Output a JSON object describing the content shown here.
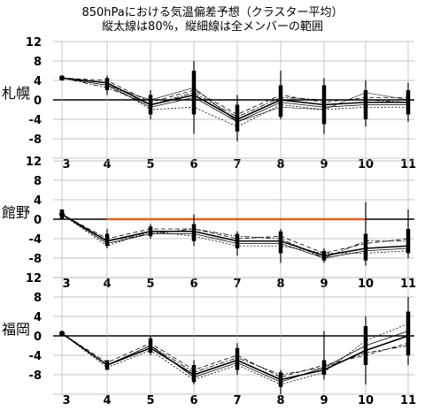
{
  "chart_data": {
    "type": "line",
    "title": "850hPaにおける気温偏差予想（クラスター平均）",
    "subtitle": "縦太線は80%，縦細線は全メンバーの範囲",
    "x": [
      3,
      4,
      5,
      6,
      7,
      8,
      9,
      10,
      11
    ],
    "x_tick_labels": [
      "3",
      "4",
      "5",
      "6",
      "7",
      "8",
      "9",
      "10",
      "11"
    ],
    "y_ticks": [
      12,
      8,
      4,
      0,
      -4,
      -8,
      -12
    ],
    "y_tick_labels": [
      "12",
      "8",
      "4",
      "0",
      "-4",
      "-8"
    ],
    "ylim": [
      -12,
      12
    ],
    "grid": true,
    "panels": [
      {
        "name": "札幌",
        "series": [
          {
            "values": [
              4.5,
              3.5,
              -1.0,
              1.0,
              -4.0,
              0.0,
              -1.0,
              -0.5,
              -0.5
            ]
          },
          {
            "values": [
              4.5,
              3.0,
              -1.5,
              0.5,
              -4.5,
              -0.5,
              -1.5,
              -1.0,
              -1.0
            ]
          },
          {
            "values": [
              4.5,
              4.0,
              -0.5,
              2.0,
              -3.0,
              1.0,
              -0.5,
              0.5,
              0.5
            ]
          },
          {
            "values": [
              4.5,
              3.5,
              -2.0,
              -1.5,
              -5.5,
              -1.0,
              -2.0,
              -1.5,
              -1.5
            ]
          },
          {
            "values": [
              4.5,
              2.5,
              -1.0,
              1.5,
              -3.5,
              0.5,
              0.0,
              0.0,
              -0.5
            ]
          },
          {
            "values": [
              4.5,
              3.0,
              0.0,
              2.5,
              -4.5,
              -1.5,
              -2.0,
              1.5,
              0.0
            ]
          }
        ],
        "bars_80": [
          [
            4,
            5
          ],
          [
            2,
            4.5
          ],
          [
            -3,
            1
          ],
          [
            -3,
            6
          ],
          [
            -6.5,
            -1
          ],
          [
            -3.5,
            3
          ],
          [
            -5,
            3
          ],
          [
            -4,
            2
          ],
          [
            -3,
            2
          ]
        ],
        "ranges": [
          [
            4,
            5
          ],
          [
            1,
            5
          ],
          [
            -4,
            2
          ],
          [
            -7,
            8
          ],
          [
            -8.5,
            1
          ],
          [
            -4,
            6
          ],
          [
            -7,
            4.5
          ],
          [
            -5.5,
            4
          ],
          [
            -4.5,
            3.5
          ]
        ],
        "highlight": null
      },
      {
        "name": "館野",
        "series": [
          {
            "values": [
              1.0,
              -4.5,
              -2.5,
              -2.5,
              -4.5,
              -4.5,
              -7.5,
              -6.0,
              -5.5
            ]
          },
          {
            "values": [
              1.0,
              -5.0,
              -3.0,
              -3.0,
              -5.0,
              -5.0,
              -8.0,
              -6.5,
              -6.0
            ]
          },
          {
            "values": [
              1.0,
              -4.0,
              -2.0,
              -2.0,
              -4.0,
              -3.5,
              -7.0,
              -5.0,
              -4.0
            ]
          },
          {
            "values": [
              1.0,
              -5.5,
              -2.5,
              -3.5,
              -5.5,
              -5.5,
              -7.0,
              -7.0,
              -6.5
            ]
          },
          {
            "values": [
              1.0,
              -4.5,
              -3.0,
              -2.0,
              -3.5,
              -4.0,
              -8.0,
              -4.5,
              -4.5
            ]
          }
        ],
        "bars_80": [
          [
            0,
            2
          ],
          [
            -5.5,
            -3
          ],
          [
            -3.5,
            -1.5
          ],
          [
            -4.5,
            -1
          ],
          [
            -6,
            -3
          ],
          [
            -7,
            -2.5
          ],
          [
            -8.5,
            -6.5
          ],
          [
            -8.5,
            -3
          ],
          [
            -7,
            -2
          ]
        ],
        "ranges": [
          [
            0,
            2
          ],
          [
            -6,
            -2
          ],
          [
            -4,
            -1
          ],
          [
            -5.5,
            1
          ],
          [
            -7.5,
            -2.5
          ],
          [
            -9,
            -2
          ],
          [
            -9,
            -6
          ],
          [
            -9.5,
            3.5
          ],
          [
            -8,
            2
          ]
        ],
        "highlight": {
          "y": 0,
          "x_start": 4,
          "x_end": 10,
          "color": "#e06020"
        }
      },
      {
        "name": "福岡",
        "series": [
          {
            "values": [
              0.5,
              -6.0,
              -2.5,
              -8.0,
              -5.0,
              -9.0,
              -7.0,
              -3.0,
              0.0
            ]
          },
          {
            "values": [
              0.5,
              -6.0,
              -2.0,
              -8.5,
              -5.5,
              -9.5,
              -6.5,
              -2.0,
              1.0
            ]
          },
          {
            "values": [
              0.5,
              -5.5,
              -1.5,
              -7.0,
              -4.0,
              -8.5,
              -6.0,
              -4.0,
              -1.5
            ]
          },
          {
            "values": [
              0.5,
              -6.5,
              -3.0,
              -9.0,
              -6.0,
              -10.0,
              -7.5,
              -1.0,
              2.5
            ]
          },
          {
            "values": [
              0.5,
              -6.0,
              -2.0,
              -7.5,
              -4.5,
              -8.0,
              -6.5,
              -3.5,
              -2.0
            ]
          }
        ],
        "bars_80": [
          [
            0,
            1
          ],
          [
            -7,
            -5
          ],
          [
            -3.5,
            -0.5
          ],
          [
            -9.5,
            -6
          ],
          [
            -7,
            -2.5
          ],
          [
            -10.5,
            -7.5
          ],
          [
            -8,
            -5
          ],
          [
            -6,
            2
          ],
          [
            -4,
            5
          ]
        ],
        "ranges": [
          [
            0,
            1
          ],
          [
            -7,
            -5
          ],
          [
            -4,
            0
          ],
          [
            -10,
            -5
          ],
          [
            -8,
            -1.5
          ],
          [
            -12,
            -7
          ],
          [
            -9,
            1
          ],
          [
            -10,
            4
          ],
          [
            -6,
            8
          ]
        ],
        "highlight": null
      }
    ]
  }
}
